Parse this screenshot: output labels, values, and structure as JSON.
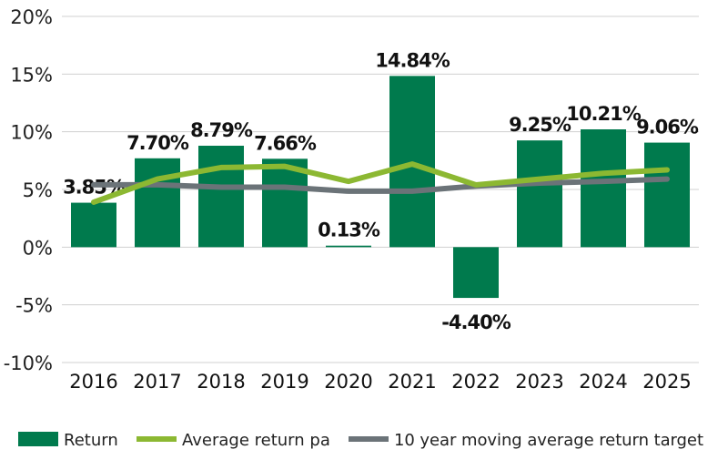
{
  "chart_data": {
    "type": "bar",
    "categories": [
      "2016",
      "2017",
      "2018",
      "2019",
      "2020",
      "2021",
      "2022",
      "2023",
      "2024",
      "2025"
    ],
    "series": [
      {
        "name": "Return",
        "type": "bar",
        "color": "#007a4d",
        "values": [
          3.85,
          7.7,
          8.79,
          7.66,
          0.13,
          14.84,
          -4.4,
          9.25,
          10.21,
          9.06
        ],
        "labels": [
          "3.85%",
          "7.70%",
          "8.79%",
          "7.66%",
          "0.13%",
          "14.84%",
          "-4.40%",
          "9.25%",
          "10.21%",
          "9.06%"
        ]
      },
      {
        "name": "Average return pa",
        "type": "line",
        "color": "#8cb832",
        "values": [
          3.9,
          5.9,
          6.9,
          7.0,
          5.7,
          7.2,
          5.4,
          5.9,
          6.4,
          6.7
        ]
      },
      {
        "name": "10 year moving average return target",
        "type": "line",
        "color": "#6b7378",
        "values": [
          5.4,
          5.4,
          5.2,
          5.2,
          4.85,
          4.85,
          5.3,
          5.55,
          5.7,
          5.9
        ]
      }
    ],
    "ylim": [
      -10,
      20
    ],
    "yticks": [
      20,
      15,
      10,
      5,
      0,
      -5,
      -10
    ],
    "ytick_labels": [
      "20%",
      "15%",
      "10%",
      "5%",
      "0%",
      "-5%",
      "-10%"
    ],
    "grid": true,
    "legend": "bottom"
  }
}
